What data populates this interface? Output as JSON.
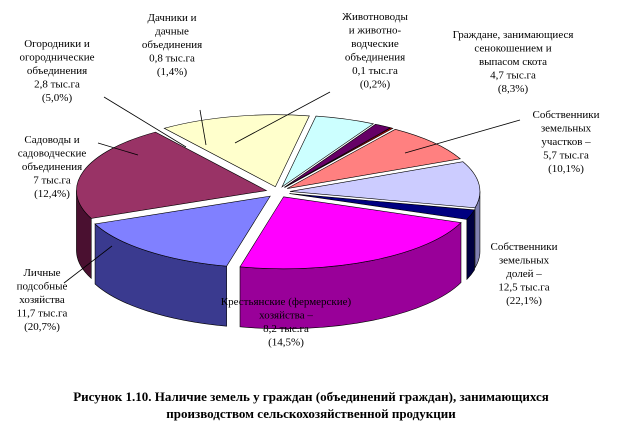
{
  "chart_data": {
    "type": "pie",
    "style": "3d-exploded",
    "unit": "тыс.га",
    "title": "",
    "slices": [
      {
        "lines": [
          "Собственники",
          "земельных",
          "долей –",
          "12,5 тыс.га",
          "(22,1%)"
        ],
        "value": 12.5,
        "percent": 22.1,
        "color": "#ff00ff",
        "side": "#990099"
      },
      {
        "lines": [
          "Крестьянские (фермерские)",
          "хозяйства –",
          "8,2 тыс.га",
          "(14,5%)"
        ],
        "value": 8.2,
        "percent": 14.5,
        "color": "#8080ff",
        "side": "#3a3a8f"
      },
      {
        "lines": [
          "Личные",
          "подсобные",
          "хозяйства",
          "11,7 тыс.га",
          "(20,7%)"
        ],
        "value": 11.7,
        "percent": 20.7,
        "color": "#993366",
        "side": "#4a1030"
      },
      {
        "lines": [
          "Садоводы и",
          "садоводческие",
          "объединения",
          "7 тыс.га",
          "(12,4%)"
        ],
        "value": 7.0,
        "percent": 12.4,
        "color": "#ffffcc",
        "side": "#a0a070"
      },
      {
        "lines": [
          "Огородники и",
          "огороднические",
          "объединения",
          "2,8 тыс.га",
          "(5,0%)"
        ],
        "value": 2.8,
        "percent": 5.0,
        "color": "#ccffff",
        "side": "#6aa0a0"
      },
      {
        "lines": [
          "Дачники и",
          "дачные",
          "объединения",
          "0,8 тыс.га",
          "(1,4%)"
        ],
        "value": 0.8,
        "percent": 1.4,
        "color": "#660066",
        "side": "#330033"
      },
      {
        "lines": [
          "Животноводы",
          "и животно-",
          "водческие",
          "объединения",
          "0,1 тыс.га",
          "(0,2%)"
        ],
        "value": 0.1,
        "percent": 0.2,
        "color": "#ff0000",
        "side": "#800000"
      },
      {
        "lines": [
          "Граждане, занимающиеся",
          "сенокошением и",
          "выпасом скота",
          "4,7 тыс.га",
          "(8,3%)"
        ],
        "value": 4.7,
        "percent": 8.3,
        "color": "#ff8080",
        "side": "#a04040"
      },
      {
        "lines": [
          "Собственники",
          "земельных",
          "участков –",
          "5,7 тыс.га",
          "(10,1%)"
        ],
        "value": 5.7,
        "percent": 10.1,
        "color": "#ccccff",
        "side": "#8080b0"
      },
      {
        "lines": [],
        "value": 1.2,
        "percent": 2.1,
        "color": "#000080",
        "side": "#000040"
      }
    ]
  },
  "caption": {
    "line1": "Рисунок 1.10. Наличие земель у граждан (объединений граждан), занимающихся",
    "line2": "производством сельскохозяйственной продукции"
  }
}
